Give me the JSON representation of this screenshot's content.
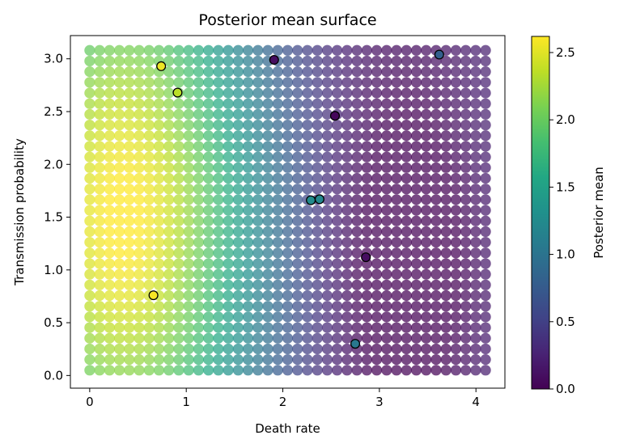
{
  "chart_data": {
    "type": "heatmap",
    "title": "Posterior mean surface",
    "xlabel": "Death rate",
    "ylabel": "Transmission probability",
    "xlim": [
      -0.2,
      4.3
    ],
    "ylim": [
      -0.12,
      3.22
    ],
    "x_ticks": [
      0,
      1,
      2,
      3,
      4
    ],
    "x_tick_labels": [
      "0",
      "1",
      "2",
      "3",
      "4"
    ],
    "y_ticks": [
      0.0,
      0.5,
      1.0,
      1.5,
      2.0,
      2.5,
      3.0
    ],
    "y_tick_labels": [
      "0.0",
      "0.5",
      "1.0",
      "1.5",
      "2.0",
      "2.5",
      "3.0"
    ],
    "grid": false,
    "colormap": "viridis",
    "surface": {
      "x_range": [
        0.0,
        4.1
      ],
      "y_range": [
        0.05,
        3.08
      ],
      "x_count": 41,
      "y_count": 31,
      "peak": [
        0.35,
        1.5
      ],
      "trough": [
        3.4,
        1.1
      ]
    },
    "colorbar": {
      "label": "Posterior mean",
      "range": [
        0.0,
        2.62
      ],
      "ticks": [
        0.0,
        0.5,
        1.0,
        1.5,
        2.0,
        2.5
      ],
      "tick_labels": [
        "0.0",
        "0.5",
        "1.0",
        "1.5",
        "2.0",
        "2.5"
      ]
    },
    "observations": [
      {
        "x": 0.74,
        "y": 2.93,
        "value": 2.55
      },
      {
        "x": 0.91,
        "y": 2.68,
        "value": 2.35
      },
      {
        "x": 1.91,
        "y": 2.99,
        "value": 0.1
      },
      {
        "x": 3.62,
        "y": 3.04,
        "value": 0.8
      },
      {
        "x": 2.54,
        "y": 2.46,
        "value": 0.05
      },
      {
        "x": 2.29,
        "y": 1.66,
        "value": 1.25
      },
      {
        "x": 2.38,
        "y": 1.67,
        "value": 1.2
      },
      {
        "x": 2.86,
        "y": 1.12,
        "value": 0.1
      },
      {
        "x": 0.66,
        "y": 0.76,
        "value": 2.6
      },
      {
        "x": 2.75,
        "y": 0.3,
        "value": 1.05
      }
    ]
  }
}
